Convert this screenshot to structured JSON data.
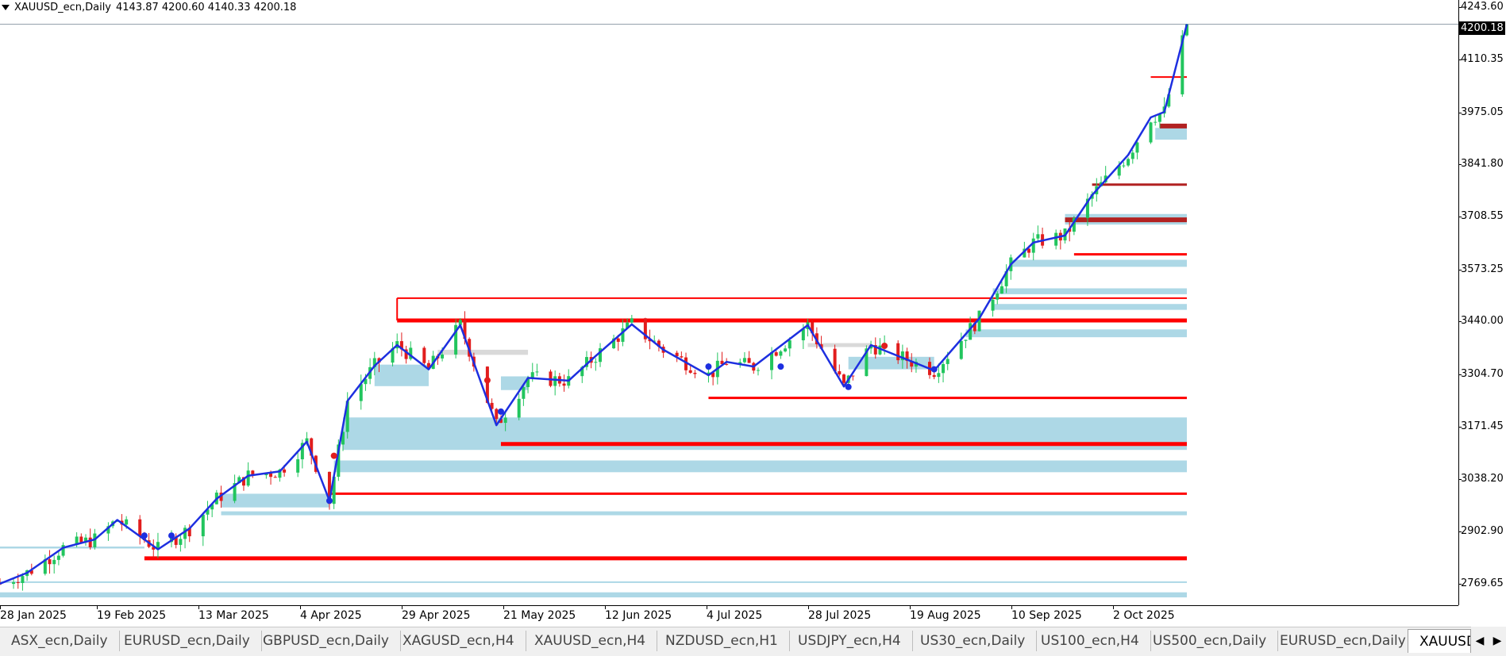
{
  "header": {
    "symbol_label": "XAUUSD_ecn,Daily",
    "ohlc": "4143.87 4200.60 4140.33 4200.18"
  },
  "current_price": "4200.18",
  "price_axis": {
    "ticks": [
      "4243.60",
      "4110.35",
      "3975.05",
      "3841.80",
      "3708.55",
      "3573.25",
      "3440.00",
      "3304.70",
      "3171.45",
      "3038.20",
      "2902.90",
      "2769.65"
    ]
  },
  "time_axis": {
    "labels": [
      "28 Jan 2025",
      "19 Feb 2025",
      "13 Mar 2025",
      "4 Apr 2025",
      "29 Apr 2025",
      "21 May 2025",
      "12 Jun 2025",
      "4 Jul 2025",
      "28 Jul 2025",
      "19 Aug 2025",
      "10 Sep 2025",
      "2 Oct 2025"
    ]
  },
  "tabs": [
    {
      "label": "ASX_ecn,Daily"
    },
    {
      "label": "EURUSD_ecn,Daily"
    },
    {
      "label": "GBPUSD_ecn,Daily"
    },
    {
      "label": "XAGUSD_ecn,H4"
    },
    {
      "label": "XAUUSD_ecn,H4"
    },
    {
      "label": "NZDUSD_ecn,H1"
    },
    {
      "label": "USDJPY_ecn,H4"
    },
    {
      "label": "US30_ecn,Daily"
    },
    {
      "label": "US100_ecn,H4"
    },
    {
      "label": "US500_ecn,Daily"
    },
    {
      "label": "EURUSD_ecn,Daily"
    },
    {
      "label": "XAUUSD_ecn,Daily"
    }
  ],
  "colors": {
    "bull": "#22c55e",
    "bear": "#e11d1d",
    "trend_line": "#1d2fe0",
    "zone_fill": "#add8e6",
    "resistance": "#ff0000",
    "resistance_dark": "#b22222"
  },
  "chart_data": {
    "type": "candlestick",
    "symbol": "XAUUSD_ecn",
    "timeframe": "Daily",
    "x_start_date": "2025-01-24",
    "x_end_date": "2025-10-14",
    "ylim": [
      2715,
      4262
    ],
    "close_series": [
      {
        "date": "2025-01-24",
        "close": 2770
      },
      {
        "date": "2025-01-30",
        "close": 2798
      },
      {
        "date": "2025-02-07",
        "close": 2862
      },
      {
        "date": "2025-02-14",
        "close": 2883
      },
      {
        "date": "2025-02-19",
        "close": 2933
      },
      {
        "date": "2025-02-28",
        "close": 2858
      },
      {
        "date": "2025-03-07",
        "close": 2911
      },
      {
        "date": "2025-03-13",
        "close": 2987
      },
      {
        "date": "2025-03-20",
        "close": 3046
      },
      {
        "date": "2025-03-27",
        "close": 3057
      },
      {
        "date": "2025-04-02",
        "close": 3133
      },
      {
        "date": "2025-04-07",
        "close": 2982
      },
      {
        "date": "2025-04-11",
        "close": 3237
      },
      {
        "date": "2025-04-17",
        "close": 3327
      },
      {
        "date": "2025-04-22",
        "close": 3380
      },
      {
        "date": "2025-04-29",
        "close": 3318
      },
      {
        "date": "2025-05-06",
        "close": 3431
      },
      {
        "date": "2025-05-14",
        "close": 3175
      },
      {
        "date": "2025-05-21",
        "close": 3296
      },
      {
        "date": "2025-05-30",
        "close": 3289
      },
      {
        "date": "2025-06-05",
        "close": 3352
      },
      {
        "date": "2025-06-13",
        "close": 3433
      },
      {
        "date": "2025-06-20",
        "close": 3368
      },
      {
        "date": "2025-06-30",
        "close": 3303
      },
      {
        "date": "2025-07-04",
        "close": 3337
      },
      {
        "date": "2025-07-10",
        "close": 3325
      },
      {
        "date": "2025-07-22",
        "close": 3431
      },
      {
        "date": "2025-07-30",
        "close": 3274
      },
      {
        "date": "2025-08-05",
        "close": 3380
      },
      {
        "date": "2025-08-19",
        "close": 3315
      },
      {
        "date": "2025-08-29",
        "close": 3448
      },
      {
        "date": "2025-09-05",
        "close": 3586
      },
      {
        "date": "2025-09-10",
        "close": 3642
      },
      {
        "date": "2025-09-17",
        "close": 3660
      },
      {
        "date": "2025-09-23",
        "close": 3763
      },
      {
        "date": "2025-10-01",
        "close": 3866
      },
      {
        "date": "2025-10-06",
        "close": 3962
      },
      {
        "date": "2025-10-09",
        "close": 3976
      },
      {
        "date": "2025-10-14",
        "close": 4200.18
      }
    ],
    "swing_points": [
      {
        "date": "2025-02-25",
        "price": 2893,
        "kind": "low"
      },
      {
        "date": "2025-03-03",
        "price": 2893,
        "kind": "low"
      },
      {
        "date": "2025-04-07",
        "price": 2982,
        "kind": "low"
      },
      {
        "date": "2025-04-08",
        "price": 3097,
        "kind": "high"
      },
      {
        "date": "2025-05-12",
        "price": 3290,
        "kind": "high"
      },
      {
        "date": "2025-05-15",
        "price": 3210,
        "kind": "low"
      },
      {
        "date": "2025-06-30",
        "price": 3325,
        "kind": "low"
      },
      {
        "date": "2025-07-16",
        "price": 3325,
        "kind": "low"
      },
      {
        "date": "2025-07-31",
        "price": 3273,
        "kind": "low"
      },
      {
        "date": "2025-08-08",
        "price": 3378,
        "kind": "high"
      },
      {
        "date": "2025-08-19",
        "price": 3318,
        "kind": "low"
      }
    ],
    "resistance_levels": [
      {
        "price": 4065,
        "from": "2025-10-06",
        "to": "2025-10-14",
        "style": "thin"
      },
      {
        "price": 3940,
        "from": "2025-10-08",
        "to": "2025-10-14",
        "style": "thick-dark"
      },
      {
        "price": 3790,
        "from": "2025-09-23",
        "to": "2025-10-14",
        "style": "dark"
      },
      {
        "price": 3700,
        "from": "2025-09-17",
        "to": "2025-10-14",
        "style": "thick-dark"
      },
      {
        "price": 3612,
        "from": "2025-09-19",
        "to": "2025-10-14",
        "style": "normal"
      },
      {
        "price": 3500,
        "from": "2025-04-22",
        "to": "2025-10-14",
        "style": "thin"
      },
      {
        "price": 3443,
        "from": "2025-04-22",
        "to": "2025-10-14",
        "style": "thick"
      },
      {
        "price": 3245,
        "from": "2025-06-30",
        "to": "2025-10-14",
        "style": "normal"
      },
      {
        "price": 3127,
        "from": "2025-05-15",
        "to": "2025-10-14",
        "style": "thick"
      },
      {
        "price": 3000,
        "from": "2025-04-07",
        "to": "2025-10-14",
        "style": "normal"
      },
      {
        "price": 2835,
        "from": "2025-02-25",
        "to": "2025-10-14",
        "style": "thick"
      }
    ],
    "demand_zones": [
      {
        "low": 3905,
        "high": 3935,
        "from": "2025-10-07",
        "to": "2025-10-14"
      },
      {
        "low": 3688,
        "high": 3715,
        "from": "2025-09-17",
        "to": "2025-10-14"
      },
      {
        "low": 3580,
        "high": 3598,
        "from": "2025-09-05",
        "to": "2025-10-14"
      },
      {
        "low": 3510,
        "high": 3525,
        "from": "2025-09-01",
        "to": "2025-10-14"
      },
      {
        "low": 3470,
        "high": 3485,
        "from": "2025-09-01",
        "to": "2025-10-14"
      },
      {
        "low": 3400,
        "high": 3420,
        "from": "2025-08-26",
        "to": "2025-10-14"
      },
      {
        "low": 3318,
        "high": 3350,
        "from": "2025-07-31",
        "to": "2025-08-19"
      },
      {
        "low": 3265,
        "high": 3300,
        "from": "2025-05-15",
        "to": "2025-05-21"
      },
      {
        "low": 3275,
        "high": 3330,
        "from": "2025-04-17",
        "to": "2025-04-29"
      },
      {
        "low": 3112,
        "high": 3195,
        "from": "2025-04-10",
        "to": "2025-10-14"
      },
      {
        "low": 3055,
        "high": 3085,
        "from": "2025-04-08",
        "to": "2025-10-14"
      },
      {
        "low": 2965,
        "high": 3000,
        "from": "2025-03-14",
        "to": "2025-04-07"
      },
      {
        "low": 2945,
        "high": 2955,
        "from": "2025-03-14",
        "to": "2025-10-14"
      },
      {
        "low": 2860,
        "high": 2865,
        "from": "2025-01-24",
        "to": "2025-02-25"
      },
      {
        "low": 2772,
        "high": 2776,
        "from": "2025-01-24",
        "to": "2025-10-14"
      },
      {
        "low": 2735,
        "high": 2748,
        "from": "2025-01-24",
        "to": "2025-10-14"
      }
    ],
    "grey_zones": [
      {
        "low": 3355,
        "high": 3368,
        "from": "2025-05-01",
        "to": "2025-05-21"
      },
      {
        "low": 3375,
        "high": 3385,
        "from": "2025-07-22",
        "to": "2025-08-05"
      }
    ]
  }
}
